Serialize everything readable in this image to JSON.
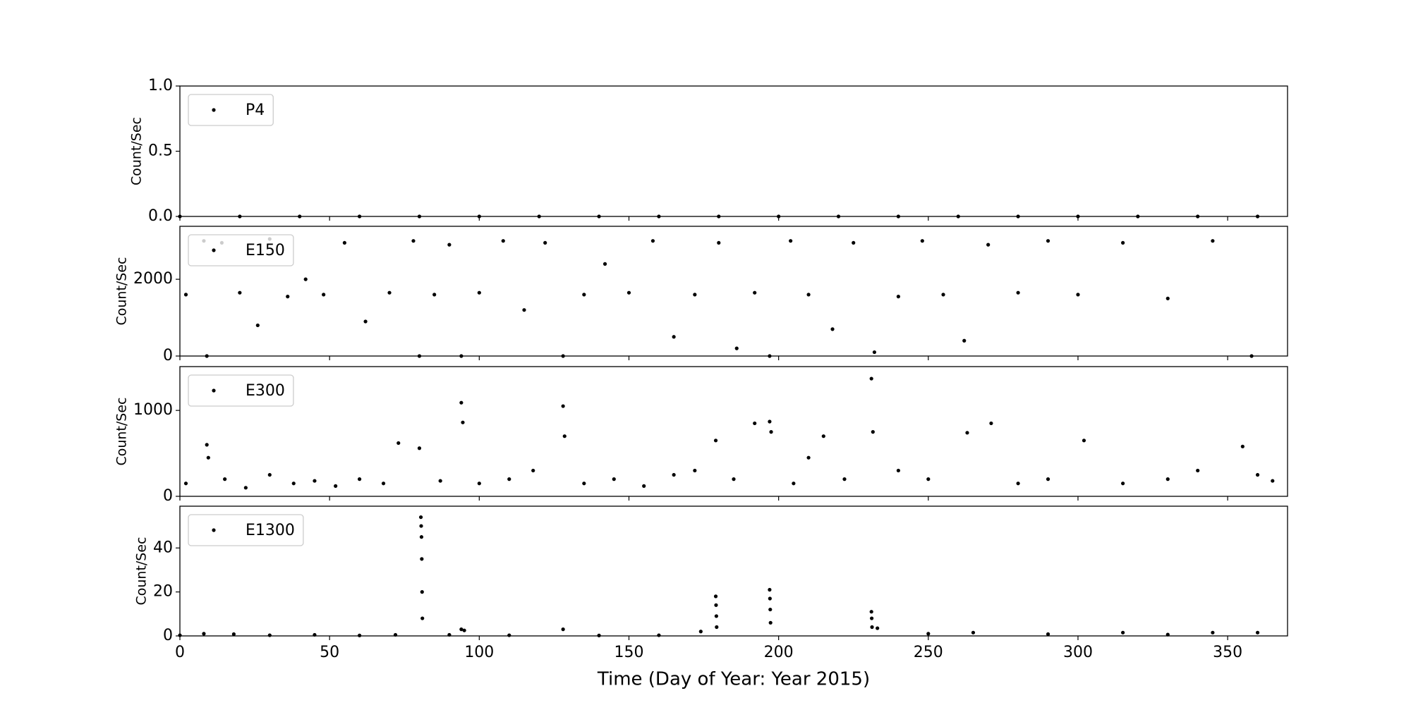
{
  "chart_data": [
    {
      "type": "scatter",
      "ylabel": "Count/Sec",
      "xlim": [
        0,
        370
      ],
      "ylim": [
        0,
        1
      ],
      "yticks": [
        {
          "value": 0,
          "label": "0.0"
        },
        {
          "value": 0.5,
          "label": "0.5"
        },
        {
          "value": 1,
          "label": "1.0"
        }
      ],
      "legend": "upper left",
      "series": [
        {
          "name": "P4",
          "color": "#000000",
          "x": [
            0,
            20,
            40,
            60,
            80,
            100,
            120,
            140,
            160,
            180,
            200,
            220,
            240,
            260,
            280,
            300,
            320,
            340,
            360
          ],
          "values": [
            0,
            0,
            0,
            0,
            0,
            0,
            0,
            0,
            0,
            0,
            0,
            0,
            0,
            0,
            0,
            0,
            0,
            0,
            0
          ]
        }
      ]
    },
    {
      "type": "scatter",
      "ylabel": "Count/Sec",
      "xlim": [
        0,
        370
      ],
      "ylim": [
        0,
        3380
      ],
      "yticks": [
        0,
        2000
      ],
      "legend": "upper left",
      "series": [
        {
          "name": "E150",
          "color": "#000000",
          "x": [
            2,
            8,
            9,
            14,
            20,
            26,
            30,
            36,
            42,
            48,
            55,
            62,
            70,
            78,
            80,
            85,
            90,
            94,
            100,
            108,
            115,
            122,
            128,
            135,
            142,
            150,
            158,
            165,
            172,
            180,
            186,
            192,
            197,
            204,
            210,
            218,
            225,
            232,
            240,
            248,
            255,
            262,
            270,
            280,
            290,
            300,
            315,
            330,
            345,
            358
          ],
          "values": [
            1600,
            3000,
            0,
            2950,
            1650,
            800,
            3050,
            1550,
            2000,
            1600,
            2950,
            900,
            1650,
            3000,
            0,
            1600,
            2900,
            0,
            1650,
            3000,
            1200,
            2950,
            0,
            1600,
            2400,
            1650,
            3000,
            500,
            1600,
            2950,
            200,
            1650,
            0,
            3000,
            1600,
            700,
            2950,
            100,
            1550,
            3000,
            1600,
            400,
            2900,
            1650,
            3000,
            1600,
            2950,
            1500,
            3000,
            0
          ]
        }
      ]
    },
    {
      "type": "scatter",
      "ylabel": "Count/Sec",
      "xlim": [
        0,
        370
      ],
      "ylim": [
        0,
        1510
      ],
      "yticks": [
        0,
        1000
      ],
      "legend": "upper left",
      "series": [
        {
          "name": "E300",
          "color": "#000000",
          "x": [
            2,
            9,
            9.5,
            15,
            22,
            30,
            38,
            45,
            52,
            60,
            68,
            73,
            80,
            87,
            94,
            94.5,
            100,
            110,
            118,
            128,
            128.5,
            135,
            145,
            155,
            165,
            172,
            179,
            185,
            192,
            197,
            197.5,
            205,
            210,
            215,
            222,
            231,
            231.5,
            240,
            250,
            263,
            271,
            280,
            290,
            302,
            315,
            330,
            340,
            355,
            360,
            365
          ],
          "values": [
            150,
            600,
            450,
            200,
            100,
            250,
            150,
            180,
            120,
            200,
            150,
            620,
            560,
            180,
            1090,
            860,
            150,
            200,
            300,
            1050,
            700,
            150,
            200,
            120,
            250,
            300,
            650,
            200,
            850,
            870,
            750,
            150,
            450,
            700,
            200,
            1370,
            750,
            300,
            200,
            740,
            850,
            150,
            200,
            650,
            150,
            200,
            300,
            580,
            250,
            180
          ]
        }
      ]
    },
    {
      "type": "scatter",
      "ylabel": "Count/Sec",
      "xlabel": "Time (Day of Year: Year 2015)",
      "xlim": [
        0,
        370
      ],
      "ylim": [
        0,
        59
      ],
      "xticks": [
        0,
        50,
        100,
        150,
        200,
        250,
        300,
        350
      ],
      "yticks": [
        0,
        20,
        40
      ],
      "legend": "upper left",
      "series": [
        {
          "name": "E1300",
          "color": "#000000",
          "x": [
            0,
            8,
            18,
            30,
            45,
            60,
            72,
            80.5,
            80.6,
            80.7,
            80.8,
            80.9,
            81,
            90,
            94,
            95,
            110,
            128,
            140,
            160,
            174,
            179,
            179.1,
            179.2,
            179.3,
            197,
            197.1,
            197.2,
            197.3,
            231,
            231.1,
            231.2,
            233,
            250,
            265,
            290,
            315,
            330,
            345,
            360
          ],
          "values": [
            0.3,
            1,
            0.8,
            0.3,
            0.5,
            0.2,
            0.5,
            54,
            50,
            45,
            35,
            20,
            8,
            0.5,
            3,
            2.5,
            0.3,
            3,
            0.2,
            0.3,
            2,
            18,
            14,
            9,
            4,
            21,
            17,
            12,
            6,
            11,
            8,
            4,
            3.5,
            1,
            1.5,
            0.8,
            1.5,
            0.6,
            1.5,
            1.5
          ]
        }
      ]
    }
  ]
}
